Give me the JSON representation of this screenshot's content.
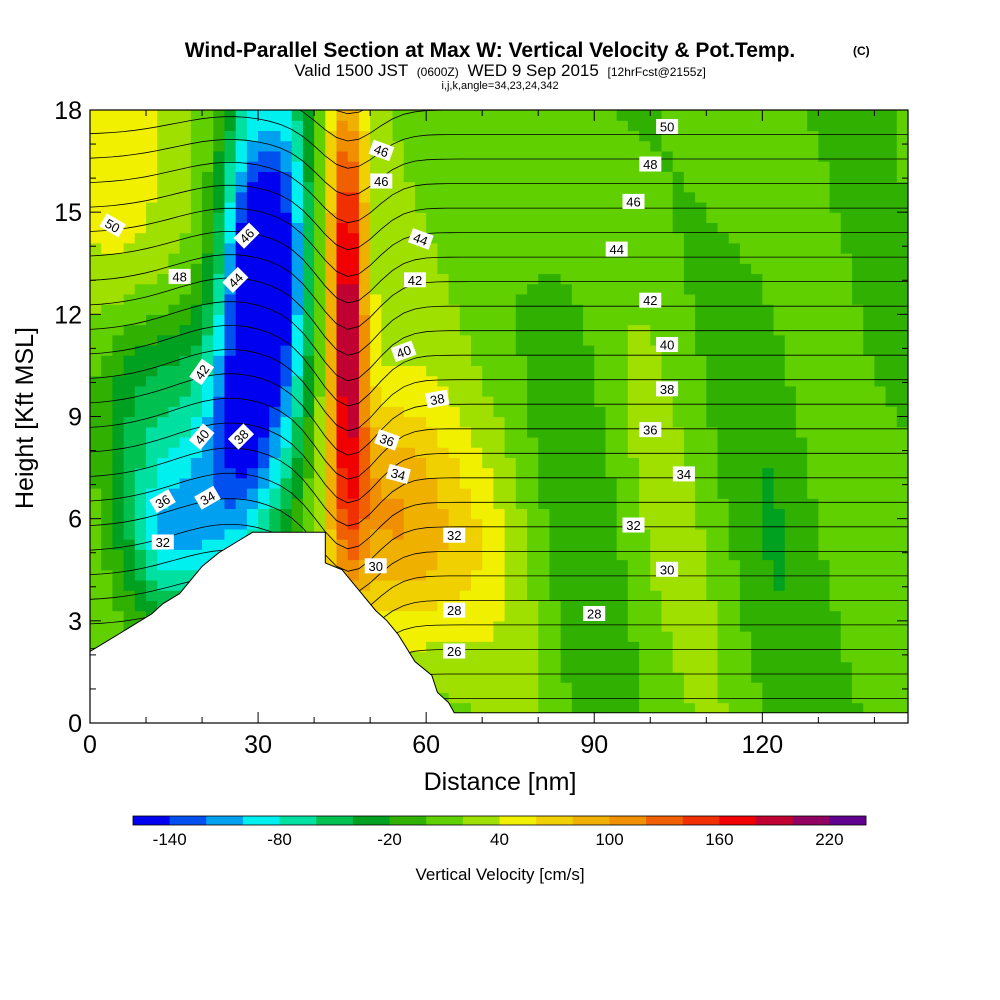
{
  "chart_data": {
    "type": "heatmap",
    "title": "Wind-Parallel Section at Max W: Vertical Velocity & Pot.Temp.",
    "title_mark": "(C)",
    "subtitle": {
      "valid": "Valid 1500 JST",
      "utc": "(0600Z)",
      "date": "WED 9 Sep 2015",
      "forecast": "[12hrFcst@2155z]"
    },
    "subtitle2": "i,j,k,angle=34,23,24,342",
    "xlabel": "Distance [nm]",
    "ylabel": "Height [Kft MSL]",
    "xlim": [
      0,
      146
    ],
    "ylim": [
      0,
      18
    ],
    "xticks": [
      0,
      30,
      60,
      90,
      120
    ],
    "yticks": [
      0,
      3,
      6,
      9,
      12,
      15,
      18
    ],
    "colorbar": {
      "label": "Vertical Velocity [cm/s]",
      "levels": [
        -160,
        -140,
        -120,
        -100,
        -80,
        -60,
        -40,
        -20,
        0,
        20,
        40,
        60,
        80,
        100,
        120,
        140,
        160,
        180,
        200,
        220,
        240
      ],
      "tick_labels": [
        "-140",
        "-80",
        "-20",
        "40",
        "100",
        "160",
        "220"
      ],
      "colors": [
        "#0000f0",
        "#0050f0",
        "#00a0f0",
        "#00f0f0",
        "#00e0a0",
        "#00c050",
        "#00a020",
        "#30b000",
        "#60d000",
        "#a0e000",
        "#f0f000",
        "#f0d000",
        "#f0b000",
        "#f09000",
        "#f06000",
        "#f03000",
        "#f00000",
        "#c00030",
        "#900060",
        "#600090"
      ]
    },
    "terrain_profile": [
      [
        0,
        2.1
      ],
      [
        2,
        2.3
      ],
      [
        5,
        2.6
      ],
      [
        8,
        2.9
      ],
      [
        11,
        3.2
      ],
      [
        13,
        3.5
      ],
      [
        16,
        3.8
      ],
      [
        18,
        4.2
      ],
      [
        20,
        4.6
      ],
      [
        23,
        5.0
      ],
      [
        26,
        5.3
      ],
      [
        29,
        5.6
      ],
      [
        42,
        5.6
      ],
      [
        42,
        4.7
      ],
      [
        45,
        4.5
      ],
      [
        48,
        3.9
      ],
      [
        51,
        3.3
      ],
      [
        53,
        3.0
      ],
      [
        55,
        2.6
      ],
      [
        58,
        1.8
      ],
      [
        61,
        1.4
      ],
      [
        62,
        0.9
      ],
      [
        64,
        0.6
      ],
      [
        65,
        0.3
      ],
      [
        146,
        0.3
      ]
    ],
    "theta_contour_labels": [
      {
        "label": "50",
        "x": 4,
        "y": 14.6,
        "rot": 30
      },
      {
        "label": "48",
        "x": 16,
        "y": 13.1,
        "rot": 0
      },
      {
        "label": "46",
        "x": 28,
        "y": 14.3,
        "rot": -45
      },
      {
        "label": "44",
        "x": 26,
        "y": 13.0,
        "rot": -45
      },
      {
        "label": "42",
        "x": 20,
        "y": 10.3,
        "rot": -55
      },
      {
        "label": "40",
        "x": 20,
        "y": 8.4,
        "rot": -50
      },
      {
        "label": "38",
        "x": 27,
        "y": 8.4,
        "rot": -45
      },
      {
        "label": "36",
        "x": 13,
        "y": 6.5,
        "rot": -30
      },
      {
        "label": "34",
        "x": 21,
        "y": 6.6,
        "rot": -30
      },
      {
        "label": "32",
        "x": 13,
        "y": 5.3,
        "rot": 0
      },
      {
        "label": "46",
        "x": 52,
        "y": 16.8,
        "rot": 20
      },
      {
        "label": "46",
        "x": 52,
        "y": 15.9,
        "rot": 0
      },
      {
        "label": "44",
        "x": 59,
        "y": 14.2,
        "rot": 20
      },
      {
        "label": "42",
        "x": 58,
        "y": 13.0,
        "rot": 0
      },
      {
        "label": "40",
        "x": 56,
        "y": 10.9,
        "rot": -20
      },
      {
        "label": "38",
        "x": 62,
        "y": 9.5,
        "rot": -10
      },
      {
        "label": "36",
        "x": 53,
        "y": 8.3,
        "rot": 20
      },
      {
        "label": "34",
        "x": 55,
        "y": 7.3,
        "rot": 15
      },
      {
        "label": "32",
        "x": 65,
        "y": 5.5,
        "rot": 0
      },
      {
        "label": "30",
        "x": 51,
        "y": 4.6,
        "rot": 0
      },
      {
        "label": "28",
        "x": 65,
        "y": 3.3,
        "rot": 0
      },
      {
        "label": "26",
        "x": 65,
        "y": 2.1,
        "rot": 0
      },
      {
        "label": "50",
        "x": 103,
        "y": 17.5,
        "rot": 0
      },
      {
        "label": "48",
        "x": 100,
        "y": 16.4,
        "rot": 0
      },
      {
        "label": "46",
        "x": 97,
        "y": 15.3,
        "rot": 0
      },
      {
        "label": "44",
        "x": 94,
        "y": 13.9,
        "rot": 0
      },
      {
        "label": "42",
        "x": 100,
        "y": 12.4,
        "rot": 0
      },
      {
        "label": "40",
        "x": 103,
        "y": 11.1,
        "rot": 0
      },
      {
        "label": "38",
        "x": 103,
        "y": 9.8,
        "rot": 0
      },
      {
        "label": "36",
        "x": 100,
        "y": 8.6,
        "rot": 0
      },
      {
        "label": "34",
        "x": 106,
        "y": 7.3,
        "rot": 0
      },
      {
        "label": "32",
        "x": 97,
        "y": 5.8,
        "rot": 0
      },
      {
        "label": "30",
        "x": 103,
        "y": 4.5,
        "rot": 0
      },
      {
        "label": "28",
        "x": 90,
        "y": 3.2,
        "rot": 0
      }
    ]
  }
}
